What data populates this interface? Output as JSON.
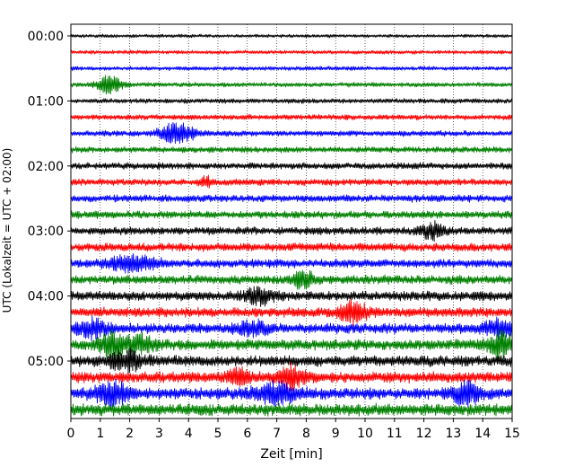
{
  "chart_data": {
    "type": "line",
    "title": "",
    "xlabel": "Zeit  [min]",
    "ylabel": "UTC (Lokalzeit = UTC + 02:00)",
    "xlim": [
      0,
      15
    ],
    "x_ticks": [
      "0",
      "1",
      "2",
      "3",
      "4",
      "5",
      "6",
      "7",
      "8",
      "9",
      "10",
      "11",
      "12",
      "13",
      "14",
      "15"
    ],
    "y_ticks": [
      "00:00",
      "01:00",
      "02:00",
      "03:00",
      "04:00",
      "05:00"
    ],
    "grid": "vertical dotted lines at each minute",
    "trace_colors": [
      "#000000",
      "#ff0000",
      "#0000ff",
      "#008000"
    ],
    "traces_count": 24,
    "traces_interval_minutes": 15,
    "events": [
      {
        "trace": 3,
        "center_min": 1.3,
        "width_min": 0.6,
        "amp": 9
      },
      {
        "trace": 6,
        "center_min": 3.6,
        "width_min": 0.8,
        "amp": 11
      },
      {
        "trace": 9,
        "center_min": 4.6,
        "width_min": 0.3,
        "amp": 5
      },
      {
        "trace": 12,
        "center_min": 12.3,
        "width_min": 0.5,
        "amp": 8
      },
      {
        "trace": 14,
        "center_min": 2.1,
        "width_min": 1.1,
        "amp": 8
      },
      {
        "trace": 15,
        "center_min": 7.9,
        "width_min": 0.5,
        "amp": 9
      },
      {
        "trace": 16,
        "center_min": 6.4,
        "width_min": 0.6,
        "amp": 9
      },
      {
        "trace": 17,
        "center_min": 9.6,
        "width_min": 0.7,
        "amp": 10
      },
      {
        "trace": 18,
        "center_min": 0.7,
        "width_min": 0.7,
        "amp": 9
      },
      {
        "trace": 18,
        "center_min": 6.2,
        "width_min": 0.8,
        "amp": 6
      },
      {
        "trace": 18,
        "center_min": 14.6,
        "width_min": 0.8,
        "amp": 9
      },
      {
        "trace": 19,
        "center_min": 1.4,
        "width_min": 0.7,
        "amp": 11
      },
      {
        "trace": 19,
        "center_min": 2.4,
        "width_min": 0.6,
        "amp": 8
      },
      {
        "trace": 19,
        "center_min": 14.6,
        "width_min": 0.6,
        "amp": 11
      },
      {
        "trace": 20,
        "center_min": 1.9,
        "width_min": 0.8,
        "amp": 9
      },
      {
        "trace": 21,
        "center_min": 5.7,
        "width_min": 0.5,
        "amp": 9
      },
      {
        "trace": 21,
        "center_min": 7.5,
        "width_min": 0.6,
        "amp": 11
      },
      {
        "trace": 22,
        "center_min": 1.4,
        "width_min": 0.8,
        "amp": 11
      },
      {
        "trace": 22,
        "center_min": 7.0,
        "width_min": 1.0,
        "amp": 9
      },
      {
        "trace": 22,
        "center_min": 13.4,
        "width_min": 0.6,
        "amp": 11
      }
    ]
  }
}
